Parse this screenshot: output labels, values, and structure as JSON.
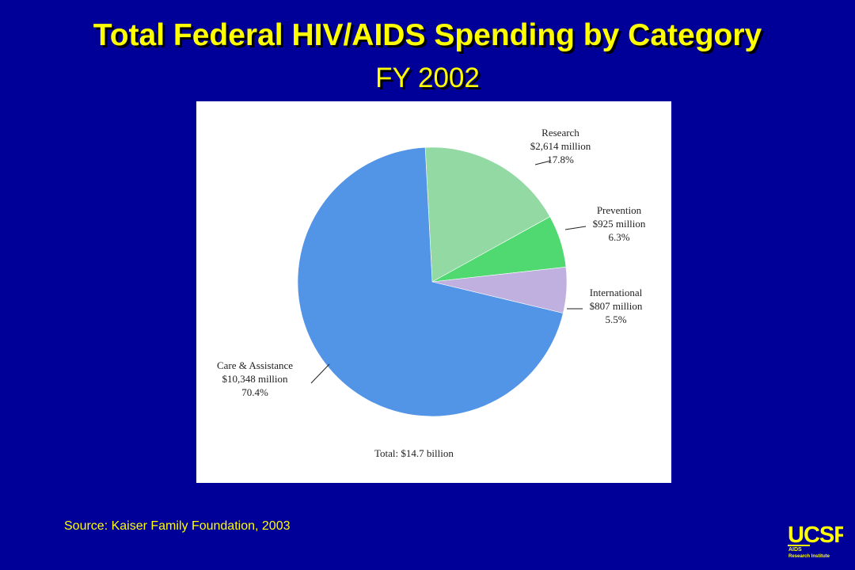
{
  "slide": {
    "title": "Total Federal HIV/AIDS Spending by Category",
    "subtitle": "FY 2002",
    "source": "Source: Kaiser Family Foundation, 2003",
    "background_color": "#000099",
    "title_color": "#ffff00"
  },
  "chart_data": {
    "type": "pie",
    "title": "",
    "total_label": "Total:  $14.7 billion",
    "slices": [
      {
        "category": "Research",
        "amount": "$2,614 million",
        "value": 2614,
        "percent_label": "17.8%",
        "percent": 17.8,
        "color": "#92d9a4"
      },
      {
        "category": "Prevention",
        "amount": "$925 million",
        "value": 925,
        "percent_label": "6.3%",
        "percent": 6.3,
        "color": "#4fd970"
      },
      {
        "category": "International",
        "amount": "$807 million",
        "value": 807,
        "percent_label": "5.5%",
        "percent": 5.5,
        "color": "#c0b0e0"
      },
      {
        "category": "Care & Assistance",
        "amount": "$10,348 million",
        "value": 10348,
        "percent_label": "70.4%",
        "percent": 70.4,
        "color": "#5294e6"
      }
    ]
  },
  "logo": {
    "text_main": "UCSF",
    "text_sub1": "AIDS",
    "text_sub2": "Research Institute"
  }
}
